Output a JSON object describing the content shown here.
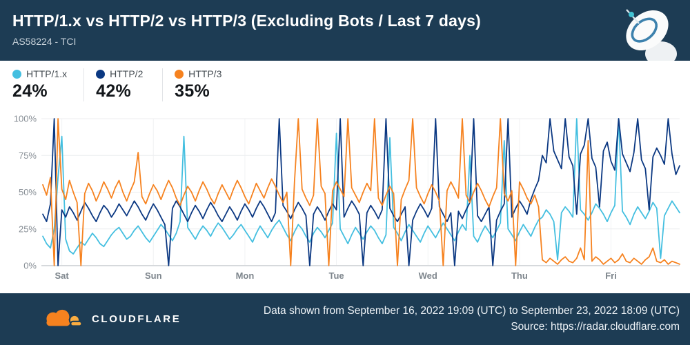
{
  "header": {
    "title": "HTTP/1.x vs HTTP/2 vs HTTP/3 (Excluding Bots / Last 7 days)",
    "subtitle": "AS58224 - TCI"
  },
  "legend": [
    {
      "label": "HTTP/1.x",
      "value": "24%",
      "color": "#44bfe0"
    },
    {
      "label": "HTTP/2",
      "value": "42%",
      "color": "#0b3882"
    },
    {
      "label": "HTTP/3",
      "value": "35%",
      "color": "#f6821f"
    }
  ],
  "footer": {
    "brand": "CLOUDFLARE",
    "line1": "Data shown from September 16, 2022 19:09 (UTC) to September 23, 2022 18:09 (UTC)",
    "line2": "Source: https://radar.cloudflare.com"
  },
  "colors": {
    "banner_bg": "#1d3c54",
    "grid": "#ecedef",
    "grid_vertical": "#f1f2f4",
    "axis_line": "#d6d9dc",
    "tick_text": "#878e95",
    "day_text": "#7d858c"
  },
  "chart_data": {
    "type": "line",
    "title": "HTTP/1.x vs HTTP/2 vs HTTP/3 (Excluding Bots / Last 7 days)",
    "xlabel": "",
    "ylabel": "",
    "ylim": [
      0,
      100
    ],
    "grid": true,
    "legend_position": "top-left",
    "yticks": [
      0,
      25,
      50,
      75,
      100
    ],
    "ytick_labels": [
      "0%",
      "25%",
      "50%",
      "75%",
      "100%"
    ],
    "n_points": 168,
    "x_ticks": [
      {
        "label": "Sat",
        "index": 5
      },
      {
        "label": "Sun",
        "index": 29
      },
      {
        "label": "Mon",
        "index": 53
      },
      {
        "label": "Tue",
        "index": 77
      },
      {
        "label": "Wed",
        "index": 101
      },
      {
        "label": "Thu",
        "index": 125
      },
      {
        "label": "Fri",
        "index": 149
      }
    ],
    "series": [
      {
        "name": "HTTP/1.x",
        "color": "#44bfe0",
        "values": [
          20,
          15,
          12,
          25,
          60,
          88,
          18,
          10,
          8,
          12,
          16,
          14,
          18,
          22,
          19,
          15,
          13,
          17,
          21,
          24,
          26,
          22,
          18,
          20,
          24,
          27,
          23,
          19,
          16,
          20,
          24,
          28,
          25,
          21,
          17,
          22,
          30,
          88,
          26,
          22,
          18,
          23,
          27,
          24,
          20,
          25,
          29,
          26,
          22,
          18,
          21,
          25,
          28,
          24,
          20,
          16,
          22,
          27,
          23,
          19,
          24,
          28,
          31,
          26,
          21,
          17,
          23,
          28,
          25,
          20,
          16,
          22,
          26,
          23,
          19,
          24,
          29,
          90,
          25,
          20,
          15,
          21,
          26,
          22,
          18,
          23,
          27,
          24,
          19,
          15,
          21,
          87,
          26,
          22,
          17,
          23,
          28,
          24,
          20,
          16,
          22,
          27,
          23,
          19,
          24,
          29,
          25,
          21,
          17,
          23,
          28,
          24,
          75,
          20,
          16,
          22,
          27,
          23,
          19,
          24,
          29,
          85,
          25,
          21,
          17,
          23,
          28,
          24,
          20,
          26,
          31,
          33,
          38,
          35,
          30,
          4,
          36,
          40,
          37,
          33,
          100,
          38,
          35,
          31,
          36,
          42,
          39,
          35,
          30,
          36,
          41,
          100,
          37,
          33,
          28,
          35,
          40,
          36,
          32,
          37,
          43,
          39,
          5,
          34,
          39,
          44,
          40,
          36
        ]
      },
      {
        "name": "HTTP/2",
        "color": "#0b3882",
        "values": [
          35,
          30,
          42,
          100,
          0,
          38,
          33,
          40,
          36,
          31,
          37,
          43,
          39,
          34,
          30,
          36,
          41,
          38,
          33,
          37,
          42,
          38,
          34,
          39,
          44,
          40,
          35,
          31,
          37,
          42,
          38,
          33,
          28,
          0,
          39,
          44,
          40,
          35,
          30,
          36,
          41,
          37,
          32,
          38,
          43,
          39,
          34,
          30,
          35,
          40,
          36,
          31,
          37,
          42,
          38,
          33,
          39,
          44,
          40,
          35,
          30,
          36,
          100,
          41,
          37,
          32,
          38,
          43,
          39,
          34,
          0,
          35,
          40,
          36,
          31,
          37,
          42,
          38,
          100,
          33,
          39,
          44,
          40,
          35,
          0,
          36,
          41,
          37,
          32,
          38,
          100,
          39,
          34,
          30,
          35,
          40,
          0,
          31,
          37,
          42,
          38,
          33,
          39,
          100,
          40,
          35,
          30,
          36,
          0,
          37,
          32,
          38,
          43,
          100,
          34,
          30,
          35,
          40,
          0,
          31,
          37,
          42,
          100,
          33,
          39,
          44,
          40,
          35,
          45,
          52,
          58,
          75,
          70,
          100,
          78,
          72,
          66,
          100,
          74,
          68,
          35,
          76,
          82,
          100,
          73,
          67,
          40,
          78,
          84,
          71,
          65,
          100,
          76,
          70,
          64,
          77,
          100,
          72,
          66,
          38,
          74,
          80,
          75,
          69,
          100,
          76,
          62,
          68
        ]
      },
      {
        "name": "HTTP/3",
        "color": "#f6821f",
        "values": [
          55,
          48,
          60,
          0,
          100,
          52,
          45,
          58,
          50,
          43,
          0,
          49,
          56,
          51,
          44,
          50,
          57,
          52,
          46,
          53,
          58,
          50,
          44,
          51,
          57,
          77,
          47,
          42,
          49,
          55,
          51,
          45,
          52,
          58,
          53,
          46,
          41,
          48,
          54,
          50,
          44,
          51,
          57,
          52,
          46,
          42,
          49,
          55,
          50,
          45,
          52,
          58,
          53,
          47,
          42,
          49,
          56,
          51,
          46,
          53,
          59,
          54,
          48,
          43,
          50,
          0,
          57,
          100,
          52,
          46,
          41,
          48,
          100,
          54,
          49,
          0,
          51,
          57,
          52,
          47,
          100,
          53,
          48,
          43,
          50,
          56,
          51,
          100,
          46,
          41,
          48,
          54,
          49,
          0,
          45,
          52,
          58,
          100,
          53,
          47,
          42,
          49,
          55,
          50,
          44,
          0,
          51,
          57,
          52,
          46,
          100,
          48,
          43,
          50,
          56,
          51,
          45,
          40,
          47,
          53,
          100,
          49,
          44,
          51,
          0,
          57,
          52,
          46,
          42,
          48,
          40,
          4,
          2,
          5,
          3,
          1,
          4,
          6,
          3,
          2,
          5,
          12,
          4,
          85,
          3,
          6,
          4,
          1,
          3,
          5,
          2,
          4,
          8,
          3,
          2,
          5,
          3,
          1,
          4,
          6,
          12,
          3,
          2,
          4,
          1,
          3,
          2,
          1
        ]
      }
    ]
  }
}
